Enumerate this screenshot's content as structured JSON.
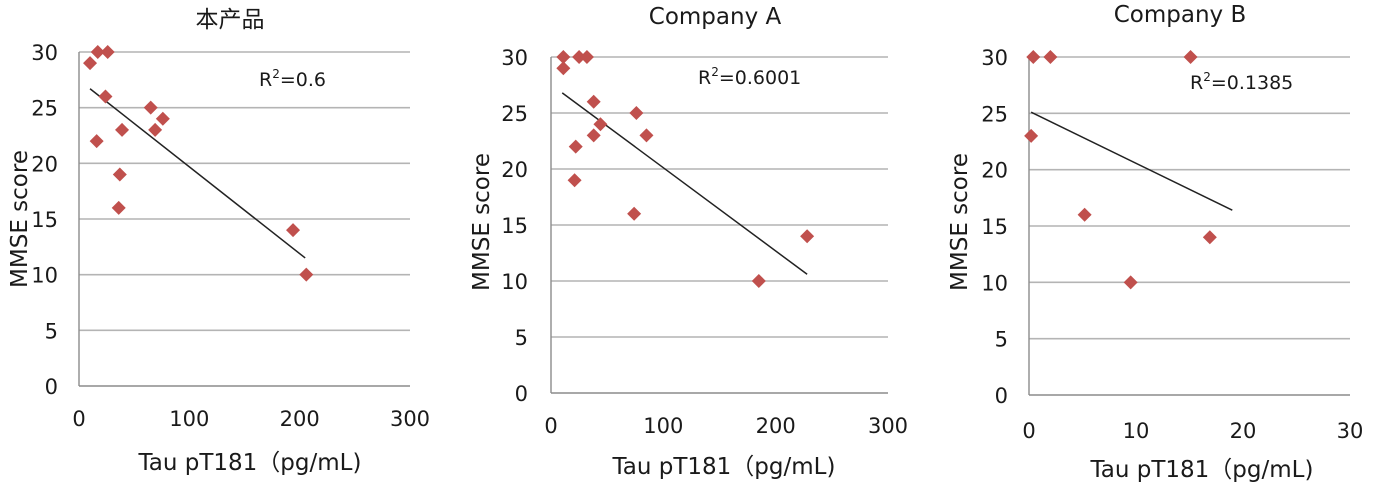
{
  "chart_data": [
    {
      "type": "scatter",
      "title": "本产品",
      "xlabel": "Tau pT181（pg/mL)",
      "ylabel": "MMSE score",
      "xlim": [
        0,
        300
      ],
      "ylim": [
        0,
        30
      ],
      "xticks": [
        0,
        100,
        200,
        300
      ],
      "yticks": [
        0,
        5,
        10,
        15,
        20,
        25,
        30
      ],
      "r2_prefix": "R",
      "r2_sup": "2",
      "r2_value": "=0.6",
      "color": "#C0504D",
      "trendline": {
        "x": [
          10,
          205
        ],
        "y": [
          26.7,
          11.5
        ]
      },
      "points": [
        {
          "x": 10,
          "y": 29
        },
        {
          "x": 17,
          "y": 30
        },
        {
          "x": 26,
          "y": 30
        },
        {
          "x": 24,
          "y": 26
        },
        {
          "x": 16,
          "y": 22
        },
        {
          "x": 39,
          "y": 23
        },
        {
          "x": 37,
          "y": 19
        },
        {
          "x": 36,
          "y": 16
        },
        {
          "x": 65,
          "y": 25
        },
        {
          "x": 69,
          "y": 23
        },
        {
          "x": 76,
          "y": 24
        },
        {
          "x": 194,
          "y": 14
        },
        {
          "x": 206,
          "y": 10
        }
      ]
    },
    {
      "type": "scatter",
      "title": "Company A",
      "xlabel": "Tau pT181（pg/mL)",
      "ylabel": "MMSE score",
      "xlim": [
        0,
        300
      ],
      "ylim": [
        0,
        30
      ],
      "xticks": [
        0,
        100,
        200,
        300
      ],
      "yticks": [
        0,
        5,
        10,
        15,
        20,
        25,
        30
      ],
      "r2_prefix": "R",
      "r2_sup": "2",
      "r2_value": "=0.6001",
      "color": "#C0504D",
      "trendline": {
        "x": [
          10,
          228
        ],
        "y": [
          26.8,
          10.6
        ]
      },
      "points": [
        {
          "x": 11,
          "y": 30
        },
        {
          "x": 11,
          "y": 29
        },
        {
          "x": 25,
          "y": 30
        },
        {
          "x": 32,
          "y": 30
        },
        {
          "x": 38,
          "y": 26
        },
        {
          "x": 44,
          "y": 24
        },
        {
          "x": 38,
          "y": 23
        },
        {
          "x": 22,
          "y": 22
        },
        {
          "x": 21,
          "y": 19
        },
        {
          "x": 74,
          "y": 16
        },
        {
          "x": 76,
          "y": 25
        },
        {
          "x": 85,
          "y": 23
        },
        {
          "x": 185,
          "y": 10
        },
        {
          "x": 228,
          "y": 14
        }
      ]
    },
    {
      "type": "scatter",
      "title": "Company B",
      "xlabel": "Tau pT181（pg/mL)",
      "ylabel": "MMSE score",
      "xlim": [
        0,
        30
      ],
      "ylim": [
        0,
        30
      ],
      "xticks": [
        0,
        10,
        20,
        30
      ],
      "yticks": [
        0,
        5,
        10,
        15,
        20,
        25,
        30
      ],
      "r2_prefix": "R",
      "r2_sup": "2",
      "r2_value": "=0.1385",
      "color": "#C0504D",
      "trendline": {
        "x": [
          0.2,
          19
        ],
        "y": [
          25.1,
          16.4
        ]
      },
      "points": [
        {
          "x": 0.2,
          "y": 23
        },
        {
          "x": 0.4,
          "y": 30
        },
        {
          "x": 2.0,
          "y": 30
        },
        {
          "x": 5.2,
          "y": 16
        },
        {
          "x": 9.5,
          "y": 10
        },
        {
          "x": 15.1,
          "y": 30
        },
        {
          "x": 16.9,
          "y": 14
        }
      ]
    }
  ]
}
